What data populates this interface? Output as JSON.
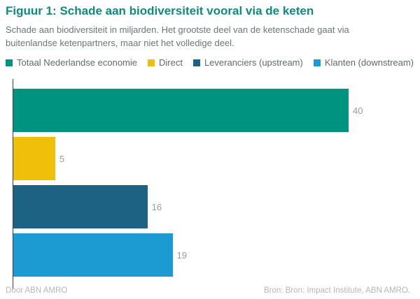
{
  "header": {
    "title": "Figuur 1: Schade aan biodiversiteit vooral via de keten",
    "subtitle": "Schade aan biodiversiteit in miljarden. Het grootste deel van de ketenschade gaat via buitenlandse ketenpartners, maar niet het volledige deel."
  },
  "footer": {
    "credit": "Door ABN AMRO",
    "source": "Bron: Bron: Impact Institute, ABN AMRO."
  },
  "colors": {
    "title": "#0f8a7e",
    "subtitle_text": "#6d7577",
    "legend_text": "#606a6e",
    "value_label": "#9b9b9b",
    "footer_text": "#b4b7b9",
    "axis_line": "#3f3f3f",
    "background": "#ffffff"
  },
  "chart_data": {
    "type": "bar",
    "orientation": "horizontal",
    "title": "Figuur 1: Schade aan biodiversiteit vooral via de keten",
    "subtitle": "Schade aan biodiversiteit in miljarden. Het grootste deel van de ketenschade gaat via buitenlandse ketenpartners, maar niet het volledige deel.",
    "categories": [
      "Totaal Nederlandse economie",
      "Direct",
      "Leveranciers (upstream)",
      "Klanten (downstream)"
    ],
    "values": [
      40,
      5,
      16,
      19
    ],
    "colors": [
      "#009380",
      "#eec00a",
      "#1d6282",
      "#1b9bd2"
    ],
    "xlim": [
      0,
      40
    ],
    "xlabel": "",
    "ylabel": "",
    "grid": false,
    "legend_position": "top",
    "value_labels_shown": true,
    "unit": "miljarden"
  }
}
